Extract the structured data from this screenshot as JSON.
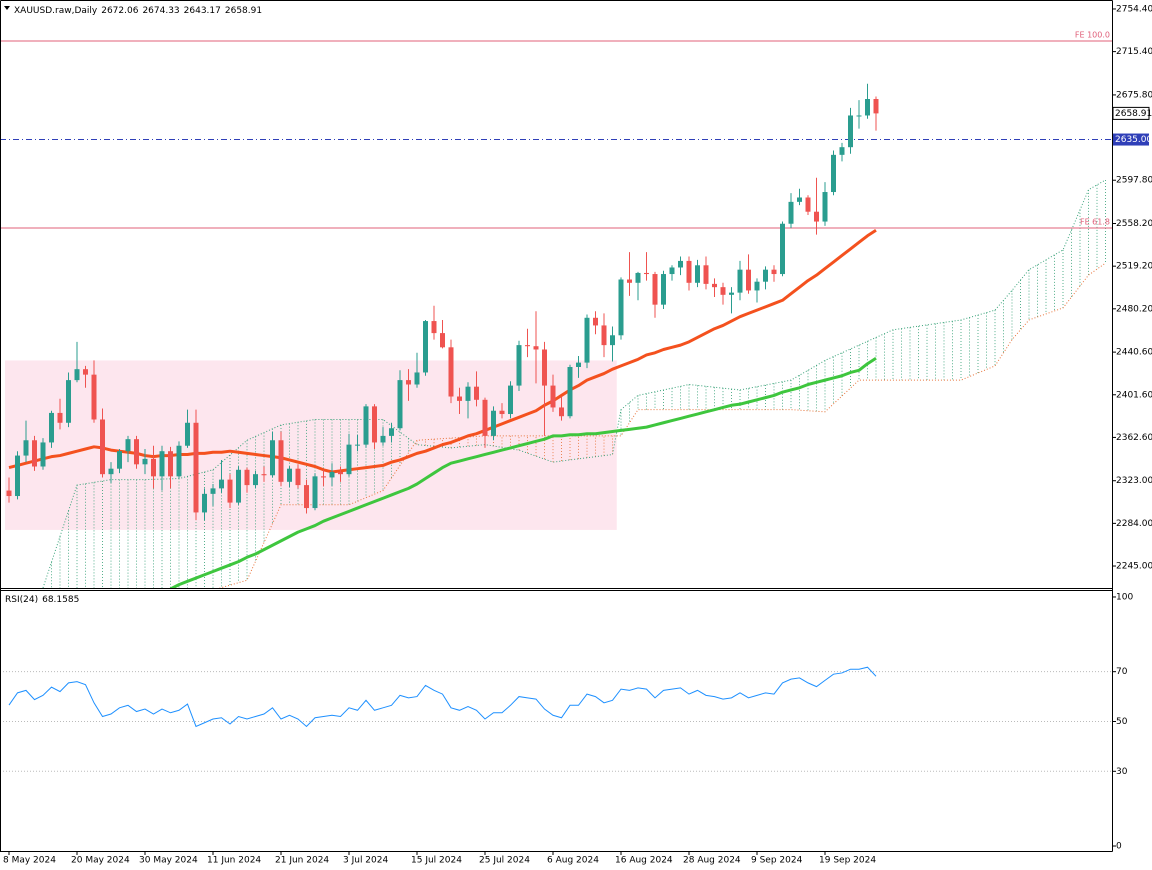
{
  "chart_data": [
    {
      "type": "candlestick",
      "title": "XAUUSD.raw,Daily",
      "categories": [
        "8 May 2024",
        null,
        null,
        null,
        null,
        null,
        null,
        null,
        "20 May 2024",
        null,
        null,
        null,
        null,
        null,
        null,
        null,
        "30 May 2024",
        null,
        null,
        null,
        null,
        null,
        null,
        null,
        "11 Jun 2024",
        null,
        null,
        null,
        null,
        null,
        null,
        null,
        "21 Jun 2024",
        null,
        null,
        null,
        null,
        null,
        null,
        null,
        "3 Jul 2024",
        null,
        null,
        null,
        null,
        null,
        null,
        null,
        "15 Jul 2024",
        null,
        null,
        null,
        null,
        null,
        null,
        null,
        "25 Jul 2024",
        null,
        null,
        null,
        null,
        null,
        null,
        null,
        "6 Aug 2024",
        null,
        null,
        null,
        null,
        null,
        null,
        null,
        "16 Aug 2024",
        null,
        null,
        null,
        null,
        null,
        null,
        null,
        "28 Aug 2024",
        null,
        null,
        null,
        null,
        null,
        null,
        null,
        "9 Sep 2024",
        null,
        null,
        null,
        null,
        null,
        null,
        null,
        "19 Sep 2024",
        null,
        null,
        null,
        null,
        null,
        null
      ],
      "open": [
        2314,
        2309,
        2346,
        2360,
        2336,
        2358,
        2385,
        2376,
        2415,
        2425,
        2420,
        2379,
        2329,
        2334,
        2350,
        2361,
        2338,
        2343,
        2327,
        2350,
        2327,
        2355,
        2376,
        2294,
        2311,
        2316,
        2324,
        2303,
        2333,
        2319,
        2329,
        2328,
        2360,
        2322,
        2334,
        2319,
        2298,
        2327,
        2326,
        2331,
        2329,
        2356,
        2356,
        2391,
        2358,
        2364,
        2371,
        2415,
        2411,
        2422,
        2469,
        2458,
        2445,
        2400,
        2396,
        2409,
        2397,
        2364,
        2387,
        2384,
        2410,
        2447,
        2446,
        2443,
        2410,
        2390,
        2382,
        2427,
        2431,
        2472,
        2465,
        2447,
        2456,
        2507,
        2504,
        2513,
        2512,
        2484,
        2512,
        2518,
        2524,
        2504,
        2520,
        2503,
        2500,
        2493,
        2495,
        2516,
        2497,
        2505,
        2516,
        2512,
        2558,
        2578,
        2582,
        2569,
        2560,
        2587,
        2621,
        2628,
        2657,
        2657,
        2672.06
      ],
      "high": [
        2326,
        2350,
        2378,
        2364,
        2362,
        2387,
        2398,
        2422,
        2450,
        2428,
        2433,
        2389,
        2340,
        2352,
        2364,
        2364,
        2352,
        2355,
        2355,
        2354,
        2359,
        2388,
        2388,
        2316,
        2320,
        2342,
        2329,
        2336,
        2335,
        2332,
        2336,
        2368,
        2368,
        2336,
        2338,
        2324,
        2330,
        2333,
        2339,
        2336,
        2366,
        2365,
        2393,
        2393,
        2372,
        2376,
        2424,
        2425,
        2440,
        2470,
        2483,
        2470,
        2452,
        2408,
        2413,
        2423,
        2399,
        2391,
        2394,
        2414,
        2451,
        2462,
        2478,
        2450,
        2420,
        2400,
        2429,
        2437,
        2475,
        2478,
        2476,
        2464,
        2509,
        2532,
        2514,
        2532,
        2514,
        2515,
        2520,
        2528,
        2528,
        2525,
        2528,
        2508,
        2504,
        2500,
        2524,
        2530,
        2508,
        2519,
        2520,
        2560,
        2586,
        2590,
        2584,
        2600,
        2596,
        2625,
        2632,
        2664,
        2671,
        2686,
        2674.33
      ],
      "low": [
        2303,
        2306,
        2340,
        2332,
        2333,
        2353,
        2370,
        2372,
        2413,
        2408,
        2376,
        2326,
        2321,
        2330,
        2340,
        2334,
        2329,
        2316,
        2314,
        2316,
        2325,
        2353,
        2287,
        2287,
        2300,
        2312,
        2298,
        2301,
        2312,
        2316,
        2322,
        2326,
        2318,
        2317,
        2316,
        2293,
        2296,
        2318,
        2318,
        2322,
        2327,
        2350,
        2353,
        2352,
        2355,
        2358,
        2369,
        2396,
        2408,
        2419,
        2452,
        2444,
        2394,
        2384,
        2380,
        2391,
        2353,
        2360,
        2380,
        2380,
        2405,
        2436,
        2412,
        2364,
        2386,
        2378,
        2380,
        2417,
        2426,
        2457,
        2436,
        2432,
        2452,
        2492,
        2488,
        2506,
        2472,
        2480,
        2506,
        2511,
        2497,
        2500,
        2498,
        2491,
        2484,
        2476,
        2488,
        2494,
        2486,
        2498,
        2505,
        2510,
        2554,
        2575,
        2566,
        2548,
        2556,
        2584,
        2615,
        2622,
        2645,
        2654,
        2643.17
      ],
      "close": [
        2309,
        2346,
        2360,
        2336,
        2358,
        2385,
        2376,
        2415,
        2425,
        2420,
        2379,
        2329,
        2334,
        2350,
        2361,
        2338,
        2343,
        2327,
        2350,
        2327,
        2355,
        2376,
        2294,
        2311,
        2316,
        2324,
        2303,
        2333,
        2319,
        2329,
        2328,
        2360,
        2322,
        2334,
        2319,
        2298,
        2327,
        2326,
        2331,
        2329,
        2356,
        2356,
        2391,
        2358,
        2364,
        2371,
        2415,
        2411,
        2422,
        2469,
        2458,
        2445,
        2400,
        2396,
        2409,
        2397,
        2364,
        2387,
        2384,
        2410,
        2447,
        2446,
        2443,
        2410,
        2390,
        2382,
        2427,
        2431,
        2472,
        2465,
        2447,
        2456,
        2507,
        2504,
        2513,
        2512,
        2484,
        2512,
        2518,
        2524,
        2504,
        2520,
        2503,
        2500,
        2493,
        2495,
        2516,
        2497,
        2505,
        2516,
        2512,
        2558,
        2578,
        2582,
        2569,
        2560,
        2587,
        2621,
        2628,
        2657,
        2657,
        2672.06,
        2658.91
      ],
      "up_color": "#2a9d8f",
      "down_color": "#ef5350",
      "series": [
        {
          "color": "#f4511e",
          "values": [
            2335,
            2337,
            2339,
            2341,
            2343,
            2345,
            2346,
            2348,
            2350,
            2352,
            2354,
            2353,
            2351,
            2350,
            2349,
            2348,
            2346,
            2345,
            2346,
            2346,
            2347,
            2347,
            2348,
            2348,
            2349,
            2349,
            2350,
            2349,
            2348,
            2347,
            2346,
            2345,
            2344,
            2342,
            2340,
            2338,
            2336,
            2333,
            2331,
            2332,
            2333,
            2334,
            2335,
            2336,
            2337,
            2340,
            2342,
            2345,
            2348,
            2350,
            2353,
            2356,
            2358,
            2361,
            2364,
            2366,
            2369,
            2372,
            2375,
            2378,
            2381,
            2384,
            2387,
            2392,
            2396,
            2401,
            2406,
            2410,
            2415,
            2418,
            2421,
            2425,
            2428,
            2431,
            2434,
            2438,
            2440,
            2443,
            2445,
            2447,
            2450,
            2454,
            2458,
            2462,
            2465,
            2469,
            2473,
            2476,
            2479,
            2482,
            2485,
            2488,
            2494,
            2500,
            2506,
            2511,
            2517,
            2523,
            2529,
            2535,
            2541,
            2547,
            2552
          ]
        },
        {
          "color": "#3ec63e",
          "values": [
            null,
            null,
            null,
            null,
            null,
            null,
            null,
            null,
            null,
            null,
            null,
            null,
            null,
            null,
            null,
            null,
            null,
            null,
            null,
            2224,
            2228,
            2231,
            2234,
            2237,
            2240,
            2243,
            2246,
            2249,
            2253,
            2256,
            2260,
            2264,
            2268,
            2272,
            2276,
            2279,
            2282,
            2286,
            2289,
            2292,
            2295,
            2298,
            2301,
            2304,
            2307,
            2310,
            2313,
            2316,
            2320,
            2325,
            2330,
            2335,
            2339,
            2341,
            2343,
            2345,
            2347,
            2349,
            2351,
            2353,
            2355,
            2357,
            2359,
            2361,
            2364,
            2364,
            2365,
            2365,
            2366,
            2366,
            2367,
            2368,
            2369,
            2370,
            2371,
            2372,
            2374,
            2376,
            2378,
            2380,
            2382,
            2384,
            2386,
            2388,
            2390,
            2392,
            2393,
            2395,
            2397,
            2399,
            2401,
            2404,
            2406,
            2408,
            2411,
            2413,
            2415,
            2417,
            2419,
            2422,
            2424,
            2430,
            2435
          ]
        }
      ],
      "cloud": {
        "x": [
          4,
          8,
          12,
          16,
          20,
          24,
          28,
          32,
          36,
          40,
          44,
          48,
          52,
          56,
          60,
          64,
          68,
          71,
          72,
          74,
          80,
          86,
          92,
          96,
          100,
          104,
          112,
          116,
          118,
          120,
          124,
          127,
          129
        ],
        "span_a": [
          2225,
          2319,
          2324,
          2324,
          2325,
          2333,
          2360,
          2374,
          2379,
          2379,
          2379,
          2356,
          2353,
          2356,
          2351,
          2340,
          2344,
          2347,
          2388,
          2401,
          2411,
          2406,
          2415,
          2433,
          2447,
          2461,
          2470,
          2479,
          2497,
          2516,
          2534,
          2589,
          2598
        ],
        "span_b": [
          2177,
          2196,
          2205,
          2214,
          2218,
          2223,
          2232,
          2301,
          2301,
          2301,
          2314,
          2360,
          2362,
          2364,
          2364,
          2364,
          2364,
          2364,
          2364,
          2388,
          2388,
          2388,
          2388,
          2386,
          2415,
          2415,
          2415,
          2428,
          2452,
          2470,
          2481,
          2511,
          2522
        ],
        "color_a": "#3aa37a",
        "color_b": "#e8743b"
      },
      "rectangle": {
        "x": [
          0,
          71.5
        ],
        "y": [
          2433,
          2278
        ],
        "color": "#fde6ee"
      },
      "levels": [
        {
          "label": "FE 100.0",
          "value": 2725.1,
          "color": "#e0607a"
        },
        {
          "label": "FE 61.8",
          "value": 2554.1,
          "color": "#e0607a"
        }
      ],
      "price_line": {
        "value": 2635,
        "label": "2635.00",
        "color": "#2f3fb8"
      },
      "ylim": [
        2224.9,
        2762.6
      ],
      "yticks": [
        {
          "value": 2754.4,
          "label": "2754.40"
        },
        {
          "value": 2715.4,
          "label": "2715.40"
        },
        {
          "value": 2675.8,
          "label": "2675.80"
        },
        {
          "value": 2597.8,
          "label": "2597.80"
        },
        {
          "value": 2558.2,
          "label": "2558.20"
        },
        {
          "value": 2519.2,
          "label": "2519.20"
        },
        {
          "value": 2480.2,
          "label": "2480.20"
        },
        {
          "value": 2440.6,
          "label": "2440.60"
        },
        {
          "value": 2401.6,
          "label": "2401.60"
        },
        {
          "value": 2362.6,
          "label": "2362.60"
        },
        {
          "value": 2323,
          "label": "2323.00"
        },
        {
          "value": 2284,
          "label": "2284.00"
        },
        {
          "value": 2245,
          "label": "2245.00"
        }
      ]
    },
    {
      "type": "line",
      "title": "RSI(24)",
      "color": "#1e90ff",
      "values": [
        56.6,
        61.5,
        62.5,
        58.8,
        60.5,
        63.8,
        62.0,
        65.5,
        66.0,
        64.8,
        57.5,
        52.0,
        53.0,
        55.5,
        56.5,
        54.0,
        55.0,
        53.0,
        55.0,
        53.5,
        54.5,
        57.0,
        48.0,
        49.5,
        51.0,
        51.5,
        49.0,
        52.0,
        51.0,
        52.0,
        53.0,
        55.5,
        51.0,
        52.5,
        51.0,
        48.0,
        51.5,
        52.0,
        52.5,
        52.0,
        55.5,
        54.5,
        58.5,
        54.5,
        55.5,
        56.5,
        60.5,
        59.5,
        60.0,
        64.5,
        62.5,
        61.0,
        55.5,
        54.5,
        56.0,
        54.5,
        51.0,
        53.5,
        53.5,
        56.5,
        60.0,
        59.5,
        59.0,
        55.0,
        52.5,
        51.5,
        56.5,
        56.5,
        61.0,
        60.0,
        57.5,
        58.5,
        63.0,
        62.5,
        63.5,
        63.0,
        59.5,
        62.5,
        63.0,
        63.5,
        61.0,
        62.5,
        60.5,
        60.0,
        59.0,
        59.5,
        61.5,
        59.5,
        60.5,
        61.5,
        61.0,
        65.5,
        67.0,
        67.5,
        65.5,
        64.0,
        66.5,
        69.0,
        69.5,
        71.0,
        71.0,
        71.8,
        68.1585
      ],
      "levels": [
        70,
        50,
        30
      ],
      "ylim": [
        -2.0,
        102.8
      ],
      "yticks": [
        100,
        70,
        50,
        30,
        0
      ]
    }
  ]
}
